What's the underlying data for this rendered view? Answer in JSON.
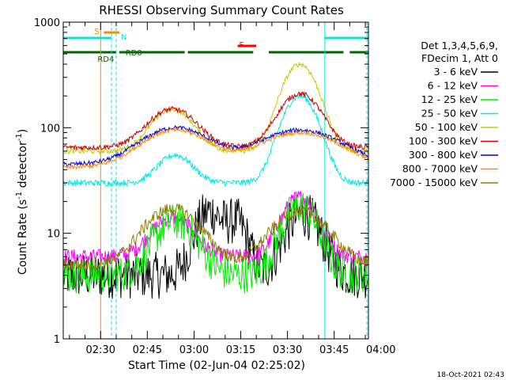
{
  "chart_data": {
    "type": "line",
    "title": "RHESSI Observing Summary Count Rates",
    "xlabel": "Start Time (02-Jun-04 02:25:02)",
    "ylabel": "Count Rate (s⁻¹ detector⁻¹)",
    "ylabel_parts": [
      "Count Rate (s",
      "-1",
      " detector",
      "-1",
      ")"
    ],
    "yscale": "log",
    "ylim": [
      1,
      1000
    ],
    "xlim_minutes": [
      0,
      98
    ],
    "y_ticks": [
      {
        "value": 1,
        "label": "1"
      },
      {
        "value": 10,
        "label": "10"
      },
      {
        "value": 100,
        "label": "100"
      },
      {
        "value": 1000,
        "label": "1000"
      }
    ],
    "x_ticks": [
      {
        "minute": 12,
        "label": "02:30"
      },
      {
        "minute": 27,
        "label": "02:45"
      },
      {
        "minute": 42,
        "label": "03:00"
      },
      {
        "minute": 57,
        "label": "03:15"
      },
      {
        "minute": 72,
        "label": "03:30"
      },
      {
        "minute": 87,
        "label": "03:45"
      },
      {
        "minute": 102,
        "label": "04:00"
      }
    ],
    "legend_header": [
      "Det 1,3,4,5,6,9,",
      "FDecim 1, Att 0"
    ],
    "legend_position": "right",
    "timestamp": "18-Oct-2021 02:43",
    "series": [
      {
        "name": "3 - 6 keV",
        "color": "#000000",
        "baseline": 4,
        "peaks": [
          {
            "t": 47,
            "w": 4,
            "v": 16
          },
          {
            "t": 56,
            "w": 3,
            "v": 12
          },
          {
            "t": 77,
            "w": 5,
            "v": 15
          }
        ],
        "noise": 0.45
      },
      {
        "name": "6 - 12 keV",
        "color": "#ff00ff",
        "baseline": 6,
        "peaks": [
          {
            "t": 35,
            "w": 6,
            "v": 14
          },
          {
            "t": 76,
            "w": 5,
            "v": 22
          }
        ],
        "noise": 0.15
      },
      {
        "name": "12 - 25 keV",
        "color": "#00ee00",
        "baseline": 4,
        "peaks": [
          {
            "t": 36,
            "w": 6,
            "v": 13
          },
          {
            "t": 76,
            "w": 5,
            "v": 18
          }
        ],
        "noise": 0.35
      },
      {
        "name": "25 - 50 keV",
        "color": "#00e5e5",
        "baseline": 30,
        "peaks": [
          {
            "t": 36,
            "w": 5,
            "v": 55
          },
          {
            "t": 76,
            "w": 5,
            "v": 200
          }
        ],
        "noise": 0.06
      },
      {
        "name": "50 - 100 keV",
        "color": "#c8c800",
        "baseline": 60,
        "peaks": [
          {
            "t": 35,
            "w": 6,
            "v": 150
          },
          {
            "t": 76,
            "w": 5,
            "v": 400
          }
        ],
        "noise": 0.05
      },
      {
        "name": "100 - 300 keV",
        "color": "#cc0000",
        "baseline": 65,
        "peaks": [
          {
            "t": 35,
            "w": 7,
            "v": 150
          },
          {
            "t": 76,
            "w": 6,
            "v": 210
          }
        ],
        "noise": 0.05
      },
      {
        "name": "300 - 800 keV",
        "color": "#0000dd",
        "baseline": 45,
        "peaks": [
          {
            "t": 36,
            "w": 10,
            "v": 100
          },
          {
            "t": 76,
            "w": 12,
            "v": 95
          }
        ],
        "noise": 0.04
      },
      {
        "name": "800 - 7000 keV",
        "color": "#ff8800",
        "baseline": 42,
        "peaks": [
          {
            "t": 36,
            "w": 10,
            "v": 95
          },
          {
            "t": 76,
            "w": 12,
            "v": 90
          }
        ],
        "noise": 0.04
      },
      {
        "name": "7000 - 15000 keV",
        "color": "#8b7d00",
        "baseline": 5,
        "peaks": [
          {
            "t": 35,
            "w": 8,
            "v": 17
          },
          {
            "t": 76,
            "w": 8,
            "v": 16
          }
        ],
        "noise": 0.12
      }
    ],
    "annotations": [
      {
        "label": "S",
        "color": "#ff8800"
      },
      {
        "label": "N",
        "color": "#00e5e5"
      },
      {
        "label": "F",
        "color": "#ff0000"
      },
      {
        "label": "RD0",
        "color": "#006600"
      },
      {
        "label": "RD4",
        "color": "#006600"
      }
    ],
    "flag_bars": {
      "saa_minutes": [
        [
          13,
          18
        ]
      ],
      "night_minutes": [
        [
          0,
          15.5
        ],
        [
          84,
          98
        ]
      ],
      "flare_minutes": [
        [
          56,
          62
        ]
      ],
      "rd_minutes": [
        [
          0,
          17
        ],
        [
          18,
          39
        ],
        [
          40,
          61
        ],
        [
          66,
          90
        ],
        [
          92,
          98
        ]
      ]
    }
  }
}
